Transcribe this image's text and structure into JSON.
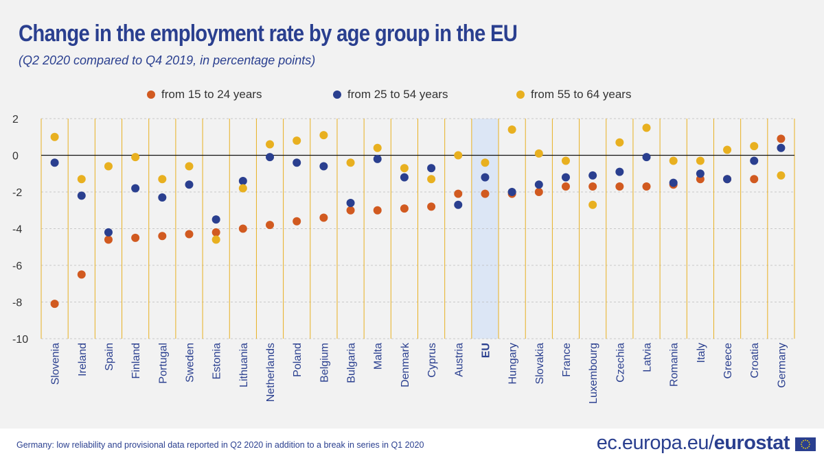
{
  "header": {
    "title": "Change in the employment rate by age group in the EU",
    "subtitle": "(Q2 2020 compared to Q4 2019, in percentage points)"
  },
  "colors": {
    "series_15_24": "#d15a20",
    "series_25_54": "#2a3f8f",
    "series_55_64": "#e8b020",
    "gridline": "#e8b020",
    "highlight": "#dce6f5",
    "text": "#2a3f8f"
  },
  "chart_data": {
    "type": "scatter",
    "categories": [
      "Slovenia",
      "Ireland",
      "Spain",
      "Finland",
      "Portugal",
      "Sweden",
      "Estonia",
      "Lithuania",
      "Netherlands",
      "Poland",
      "Belgium",
      "Bulgaria",
      "Malta",
      "Denmark",
      "Cyprus",
      "Austria",
      "EU",
      "Hungary",
      "Slovakia",
      "France",
      "Luxembourg",
      "Czechia",
      "Latvia",
      "Romania",
      "Italy",
      "Greece",
      "Croatia",
      "Germany"
    ],
    "highlight_category": "EU",
    "series": [
      {
        "name": "from 15 to 24 years",
        "color": "#d15a20",
        "values": [
          -8.1,
          -6.5,
          -4.6,
          -4.5,
          -4.4,
          -4.3,
          -4.2,
          -4.0,
          -3.8,
          -3.6,
          -3.4,
          -3.0,
          -3.0,
          -2.9,
          -2.8,
          -2.1,
          -2.1,
          -2.1,
          -2.0,
          -1.7,
          -1.7,
          -1.7,
          -1.7,
          -1.6,
          -1.3,
          -1.3,
          -1.3,
          0.9
        ]
      },
      {
        "name": "from 25 to 54 years",
        "color": "#2a3f8f",
        "values": [
          -0.4,
          -2.2,
          -4.2,
          -1.8,
          -2.3,
          -1.6,
          -3.5,
          -1.4,
          -0.1,
          -0.4,
          -0.6,
          -2.6,
          -0.2,
          -1.2,
          -0.7,
          -2.7,
          -1.2,
          -2.0,
          -1.6,
          -1.2,
          -1.1,
          -0.9,
          -0.1,
          -1.5,
          -1.0,
          -1.3,
          -0.3,
          0.4
        ]
      },
      {
        "name": "from 55 to 64 years",
        "color": "#e8b020",
        "values": [
          1.0,
          -1.3,
          -0.6,
          -0.1,
          -1.3,
          -0.6,
          -4.6,
          -1.8,
          0.6,
          0.8,
          1.1,
          -0.4,
          0.4,
          -0.7,
          -1.3,
          0.0,
          -0.4,
          1.4,
          0.1,
          -0.3,
          -2.7,
          0.7,
          1.5,
          -0.3,
          -0.3,
          0.3,
          0.5,
          -1.1
        ]
      }
    ],
    "ylim": [
      -10,
      2
    ],
    "yticks": [
      2,
      0,
      -2,
      -4,
      -6,
      -8,
      -10
    ],
    "grid": true,
    "legend_position": "top"
  },
  "footer": {
    "note": "Germany: low reliability and provisional data reported in Q2 2020 in addition to a break in series in Q1 2020",
    "brand_prefix": "ec.europa.eu/",
    "brand_name": "eurostat"
  }
}
